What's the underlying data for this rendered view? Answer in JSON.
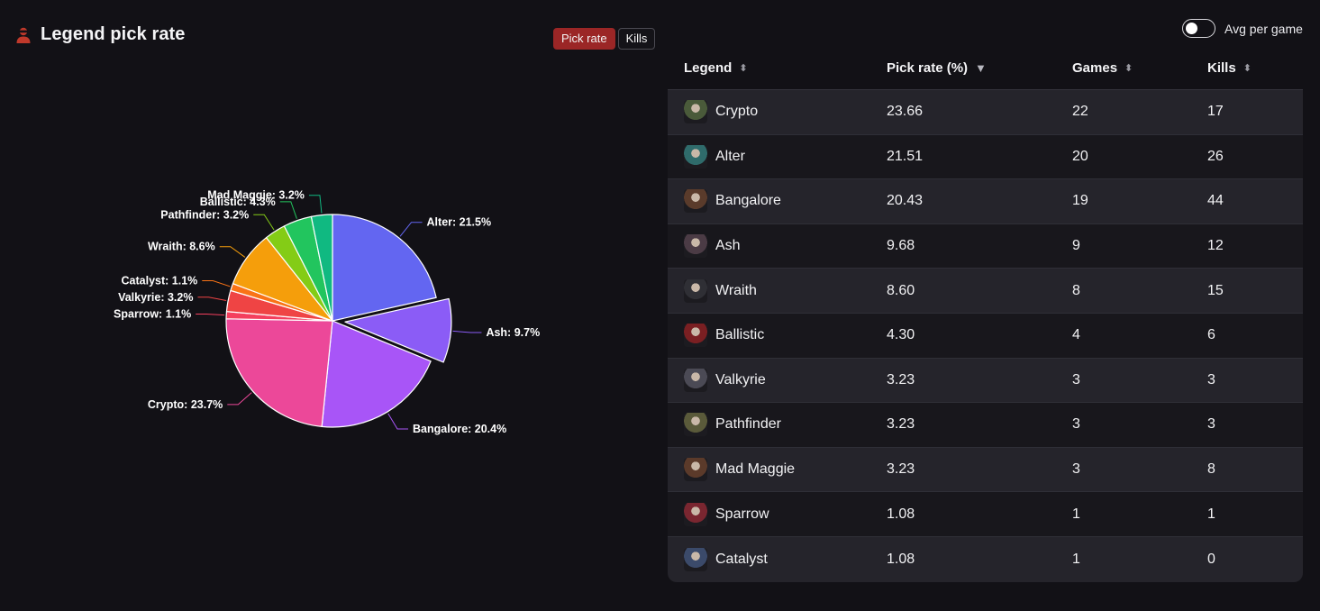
{
  "header": {
    "title": "Legend pick rate",
    "icon": "player-icon"
  },
  "mode_toggle": {
    "pick_rate_label": "Pick rate",
    "kills_label": "Kills",
    "active": "Pick rate"
  },
  "avg_toggle": {
    "label": "Avg per game",
    "checked": false
  },
  "table": {
    "columns": [
      "Legend",
      "Pick rate (%)",
      "Games",
      "Kills"
    ],
    "sorted_by": "Pick rate (%)",
    "sort_direction": "descending",
    "rows": [
      {
        "legend": "Crypto",
        "pick_rate": "23.66",
        "games": "22",
        "kills": "17"
      },
      {
        "legend": "Alter",
        "pick_rate": "21.51",
        "games": "20",
        "kills": "26"
      },
      {
        "legend": "Bangalore",
        "pick_rate": "20.43",
        "games": "19",
        "kills": "44"
      },
      {
        "legend": "Ash",
        "pick_rate": "9.68",
        "games": "9",
        "kills": "12"
      },
      {
        "legend": "Wraith",
        "pick_rate": "8.60",
        "games": "8",
        "kills": "15"
      },
      {
        "legend": "Ballistic",
        "pick_rate": "4.30",
        "games": "4",
        "kills": "6"
      },
      {
        "legend": "Valkyrie",
        "pick_rate": "3.23",
        "games": "3",
        "kills": "3"
      },
      {
        "legend": "Pathfinder",
        "pick_rate": "3.23",
        "games": "3",
        "kills": "3"
      },
      {
        "legend": "Mad Maggie",
        "pick_rate": "3.23",
        "games": "3",
        "kills": "8"
      },
      {
        "legend": "Sparrow",
        "pick_rate": "1.08",
        "games": "1",
        "kills": "1"
      },
      {
        "legend": "Catalyst",
        "pick_rate": "1.08",
        "games": "1",
        "kills": "0"
      }
    ]
  },
  "chart_data": {
    "type": "pie",
    "title": "",
    "slices": [
      {
        "name": "Alter",
        "value": 21.5,
        "label": "Alter: 21.5%",
        "color": "#6366f1"
      },
      {
        "name": "Ash",
        "value": 9.7,
        "label": "Ash: 9.7%",
        "color": "#8b5cf6",
        "exploded": true
      },
      {
        "name": "Bangalore",
        "value": 20.4,
        "label": "Bangalore: 20.4%",
        "color": "#a855f7"
      },
      {
        "name": "Crypto",
        "value": 23.7,
        "label": "Crypto: 23.7%",
        "color": "#ec4899"
      },
      {
        "name": "Sparrow",
        "value": 1.1,
        "label": "Sparrow: 1.1%",
        "color": "#f43f5e"
      },
      {
        "name": "Valkyrie",
        "value": 3.2,
        "label": "Valkyrie: 3.2%",
        "color": "#ef4444"
      },
      {
        "name": "Catalyst",
        "value": 1.1,
        "label": "Catalyst: 1.1%",
        "color": "#f97316"
      },
      {
        "name": "Wraith",
        "value": 8.6,
        "label": "Wraith: 8.6%",
        "color": "#f59e0b"
      },
      {
        "name": "Pathfinder",
        "value": 3.2,
        "label": "Pathfinder: 3.2%",
        "color": "#84cc16"
      },
      {
        "name": "Ballistic",
        "value": 4.3,
        "label": "Ballistic: 4.3%",
        "color": "#22c55e"
      },
      {
        "name": "Mad Maggie",
        "value": 3.2,
        "label": "Mad Maggie: 3.2%",
        "color": "#10b981"
      }
    ]
  }
}
